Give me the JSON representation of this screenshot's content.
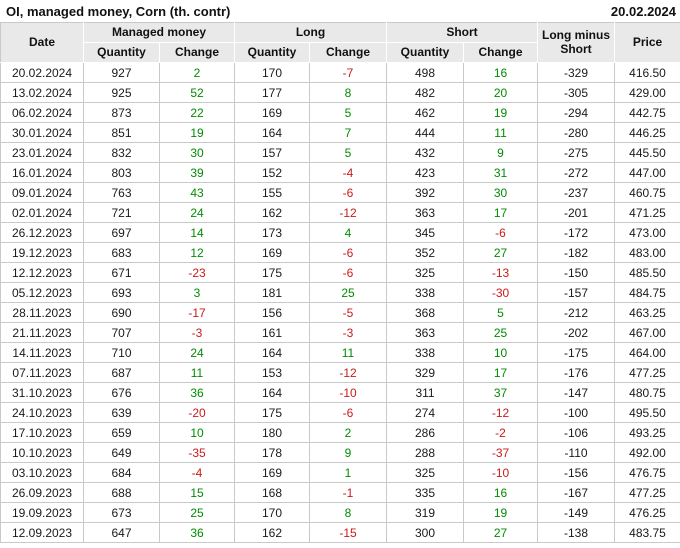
{
  "title": "OI, managed money, Corn (th. contr)",
  "report_date": "20.02.2024",
  "table": {
    "header": {
      "date": "Date",
      "groups": [
        {
          "label": "Managed money",
          "sub": [
            "Quantity",
            "Change"
          ]
        },
        {
          "label": "Long",
          "sub": [
            "Quantity",
            "Change"
          ]
        },
        {
          "label": "Short",
          "sub": [
            "Quantity",
            "Change"
          ]
        }
      ],
      "long_minus_short": "Long minus Short",
      "price": "Price"
    },
    "column_names": [
      "cell-date",
      "cell-managed-money-quantity",
      "cell-managed-money-change",
      "cell-long-quantity",
      "cell-long-change",
      "cell-short-quantity",
      "cell-short-change",
      "cell-long-minus-short",
      "cell-price"
    ],
    "change_columns": [
      2,
      4,
      6
    ],
    "rows": [
      [
        "20.02.2024",
        "927",
        "2",
        "170",
        "-7",
        "498",
        "16",
        "-329",
        "416.50"
      ],
      [
        "13.02.2024",
        "925",
        "52",
        "177",
        "8",
        "482",
        "20",
        "-305",
        "429.00"
      ],
      [
        "06.02.2024",
        "873",
        "22",
        "169",
        "5",
        "462",
        "19",
        "-294",
        "442.75"
      ],
      [
        "30.01.2024",
        "851",
        "19",
        "164",
        "7",
        "444",
        "11",
        "-280",
        "446.25"
      ],
      [
        "23.01.2024",
        "832",
        "30",
        "157",
        "5",
        "432",
        "9",
        "-275",
        "445.50"
      ],
      [
        "16.01.2024",
        "803",
        "39",
        "152",
        "-4",
        "423",
        "31",
        "-272",
        "447.00"
      ],
      [
        "09.01.2024",
        "763",
        "43",
        "155",
        "-6",
        "392",
        "30",
        "-237",
        "460.75"
      ],
      [
        "02.01.2024",
        "721",
        "24",
        "162",
        "-12",
        "363",
        "17",
        "-201",
        "471.25"
      ],
      [
        "26.12.2023",
        "697",
        "14",
        "173",
        "4",
        "345",
        "-6",
        "-172",
        "473.00"
      ],
      [
        "19.12.2023",
        "683",
        "12",
        "169",
        "-6",
        "352",
        "27",
        "-182",
        "483.00"
      ],
      [
        "12.12.2023",
        "671",
        "-23",
        "175",
        "-6",
        "325",
        "-13",
        "-150",
        "485.50"
      ],
      [
        "05.12.2023",
        "693",
        "3",
        "181",
        "25",
        "338",
        "-30",
        "-157",
        "484.75"
      ],
      [
        "28.11.2023",
        "690",
        "-17",
        "156",
        "-5",
        "368",
        "5",
        "-212",
        "463.25"
      ],
      [
        "21.11.2023",
        "707",
        "-3",
        "161",
        "-3",
        "363",
        "25",
        "-202",
        "467.00"
      ],
      [
        "14.11.2023",
        "710",
        "24",
        "164",
        "11",
        "338",
        "10",
        "-175",
        "464.00"
      ],
      [
        "07.11.2023",
        "687",
        "11",
        "153",
        "-12",
        "329",
        "17",
        "-176",
        "477.25"
      ],
      [
        "31.10.2023",
        "676",
        "36",
        "164",
        "-10",
        "311",
        "37",
        "-147",
        "480.75"
      ],
      [
        "24.10.2023",
        "639",
        "-20",
        "175",
        "-6",
        "274",
        "-12",
        "-100",
        "495.50"
      ],
      [
        "17.10.2023",
        "659",
        "10",
        "180",
        "2",
        "286",
        "-2",
        "-106",
        "493.25"
      ],
      [
        "10.10.2023",
        "649",
        "-35",
        "178",
        "9",
        "288",
        "-37",
        "-110",
        "492.00"
      ],
      [
        "03.10.2023",
        "684",
        "-4",
        "169",
        "1",
        "325",
        "-10",
        "-156",
        "476.75"
      ],
      [
        "26.09.2023",
        "688",
        "15",
        "168",
        "-1",
        "335",
        "16",
        "-167",
        "477.25"
      ],
      [
        "19.09.2023",
        "673",
        "25",
        "170",
        "8",
        "319",
        "19",
        "-149",
        "476.25"
      ],
      [
        "12.09.2023",
        "647",
        "36",
        "162",
        "-15",
        "300",
        "27",
        "-138",
        "483.75"
      ]
    ]
  },
  "colors": {
    "positive": "#008c00",
    "negative": "#cc1a1a",
    "header_bg": "#e9e9e9",
    "grid_border": "#c9c9c9",
    "text": "#1a1a1a"
  }
}
